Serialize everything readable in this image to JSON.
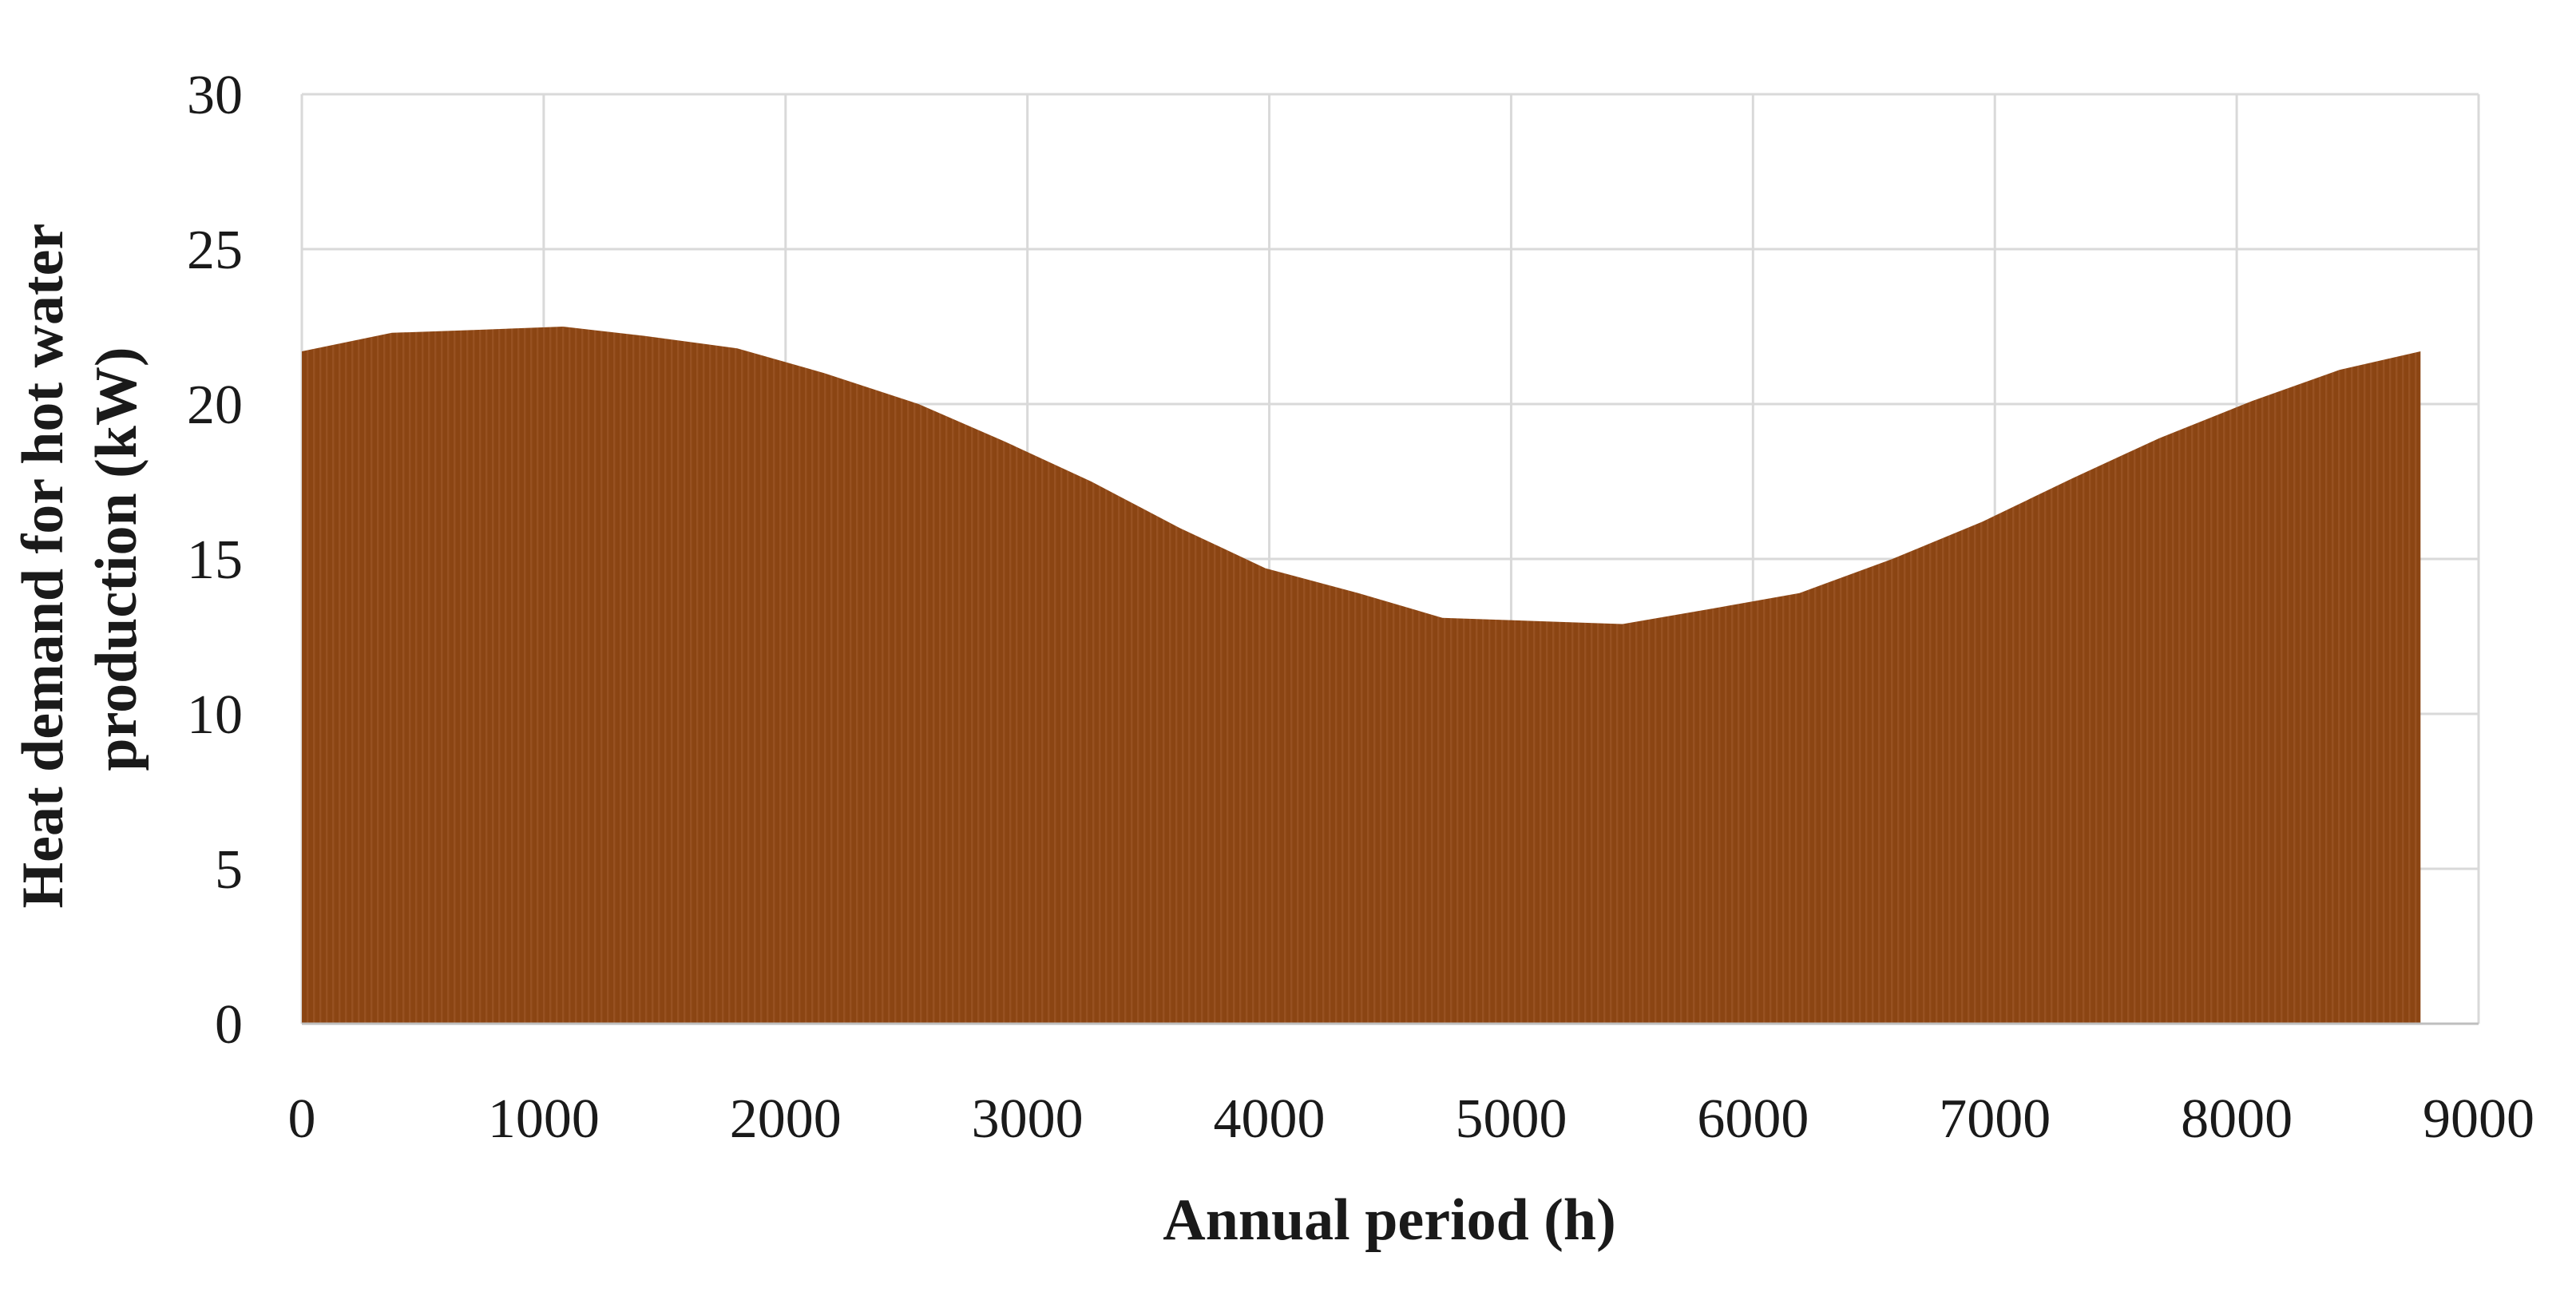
{
  "chart_data": {
    "type": "area",
    "title": "",
    "xlabel": "Annual period (h)",
    "ylabel_lines": [
      "Heat demand for hot water",
      "production (kW)"
    ],
    "xlim": [
      0,
      9000
    ],
    "ylim": [
      0,
      30
    ],
    "x_ticks": [
      0,
      1000,
      2000,
      3000,
      4000,
      5000,
      6000,
      7000,
      8000,
      9000
    ],
    "y_ticks": [
      0,
      5,
      10,
      15,
      20,
      25,
      30
    ],
    "grid": true,
    "fill_color": "#8b4513",
    "series": [
      {
        "name": "Heat demand for hot water production",
        "x": [
          0,
          372,
          744,
          1080,
          1416,
          1800,
          2160,
          2550,
          2904,
          3264,
          3630,
          3984,
          4368,
          4716,
          5088,
          5460,
          5832,
          6192,
          6576,
          6948,
          7320,
          7680,
          8064,
          8424,
          8760
        ],
        "y": [
          21.7,
          22.3,
          22.4,
          22.5,
          22.2,
          21.8,
          21.0,
          20.0,
          18.8,
          17.5,
          16.0,
          14.7,
          13.9,
          13.1,
          13.0,
          12.9,
          13.4,
          13.9,
          15.0,
          16.2,
          17.6,
          18.9,
          20.1,
          21.1,
          21.7
        ]
      }
    ]
  }
}
